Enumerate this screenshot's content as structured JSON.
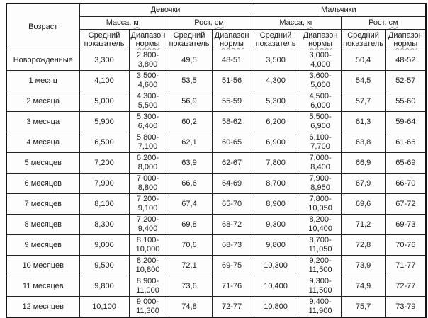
{
  "table": {
    "groups": {
      "girls": "Девочки",
      "boys": "Мальчики"
    },
    "columns": {
      "age": "Возраст",
      "mass_prefix": "Масса,",
      "mass_unit": "кг",
      "height_prefix": "Рост,",
      "height_unit": "см",
      "avg": "Средний показатель",
      "range_line1": "Диапазон",
      "range_line2": "нормы"
    },
    "rows": [
      {
        "age": "Новорожденные",
        "gm_avg": "3,300",
        "gm_range": "2,800-\n3,800",
        "gh_avg": "49,5",
        "gh_range": "48-51",
        "bm_avg": "3,500",
        "bm_range": "3,000-\n4,000",
        "bh_avg": "50,4",
        "bh_range": "48-52"
      },
      {
        "age": "1 месяц",
        "gm_avg": "4,100",
        "gm_range": "3,500-\n4,600",
        "gh_avg": "53,5",
        "gh_range": "51-56",
        "bm_avg": "4,300",
        "bm_range": "3,600-\n5,000",
        "bh_avg": "54,5",
        "bh_range": "52-57"
      },
      {
        "age": "2 месяца",
        "gm_avg": "5,000",
        "gm_range": "4,300-\n5,500",
        "gh_avg": "56,9",
        "gh_range": "55-59",
        "bm_avg": "5,300",
        "bm_range": "4,500-\n6,000",
        "bh_avg": "57,7",
        "bh_range": "55-60"
      },
      {
        "age": "3 месяца",
        "gm_avg": "5,900",
        "gm_range": "5,300-\n6,400",
        "gh_avg": "60,2",
        "gh_range": "58-62",
        "bm_avg": "6,200",
        "bm_range": "5,500-\n6,900",
        "bh_avg": "61,3",
        "bh_range": "59-64"
      },
      {
        "age": "4 месяца",
        "gm_avg": "6,500",
        "gm_range": "5,800-\n7,100",
        "gh_avg": "62,1",
        "gh_range": "60-65",
        "bm_avg": "6,900",
        "bm_range": "6,100-\n7,700",
        "bh_avg": "63,8",
        "bh_range": "61-66"
      },
      {
        "age": "5 месяцев",
        "gm_avg": "7,200",
        "gm_range": "6,200-\n8,000",
        "gh_avg": "63,9",
        "gh_range": "62-67",
        "bm_avg": "7,800",
        "bm_range": "7,000-\n8,400",
        "bh_avg": "66,9",
        "bh_range": "65-69"
      },
      {
        "age": "6 месяцев",
        "gm_avg": "7,900",
        "gm_range": "7,000-\n8,800",
        "gh_avg": "66,6",
        "gh_range": "64-69",
        "bm_avg": "8,700",
        "bm_range": "7,900-\n8,950",
        "bh_avg": "67,9",
        "bh_range": "66-70"
      },
      {
        "age": "7 месяцев",
        "gm_avg": "8,100",
        "gm_range": "7,200-\n9,100",
        "gh_avg": "67,4",
        "gh_range": "65-70",
        "bm_avg": "8,900",
        "bm_range": "7,800-\n10,050",
        "bh_avg": "69,6",
        "bh_range": "67-72"
      },
      {
        "age": "8 месяцев",
        "gm_avg": "8,300",
        "gm_range": "7,200-\n9,400",
        "gh_avg": "69,8",
        "gh_range": "68-72",
        "bm_avg": "9,300",
        "bm_range": "8,200-\n10,400",
        "bh_avg": "71,2",
        "bh_range": "69-73"
      },
      {
        "age": "9 месяцев",
        "gm_avg": "9,000",
        "gm_range": "8,100-\n10,000",
        "gh_avg": "70,6",
        "gh_range": "68-73",
        "bm_avg": "9,800",
        "bm_range": "8,700-\n11,050",
        "bh_avg": "72,8",
        "bh_range": "70-76"
      },
      {
        "age": "10 месяцев",
        "gm_avg": "9,500",
        "gm_range": "8,200-\n10,800",
        "gh_avg": "72,1",
        "gh_range": "69-75",
        "bm_avg": "10,300",
        "bm_range": "9,200-\n11,500",
        "bh_avg": "73,9",
        "bh_range": "71-77"
      },
      {
        "age": "11 месяцев",
        "gm_avg": "9,800",
        "gm_range": "8,900-\n11,000",
        "gh_avg": "73,6",
        "gh_range": "71-76",
        "bm_avg": "10,400",
        "bm_range": "9,300-\n11,500",
        "bh_avg": "74,9",
        "bh_range": "72-77"
      },
      {
        "age": "12 месяцев",
        "gm_avg": "10,100",
        "gm_range": "9,000-\n11,300",
        "gh_avg": "74,8",
        "gh_range": "72-77",
        "bm_avg": "10,800",
        "bm_range": "9,400-\n11,900",
        "bh_avg": "75,7",
        "bh_range": "73-79"
      }
    ]
  }
}
